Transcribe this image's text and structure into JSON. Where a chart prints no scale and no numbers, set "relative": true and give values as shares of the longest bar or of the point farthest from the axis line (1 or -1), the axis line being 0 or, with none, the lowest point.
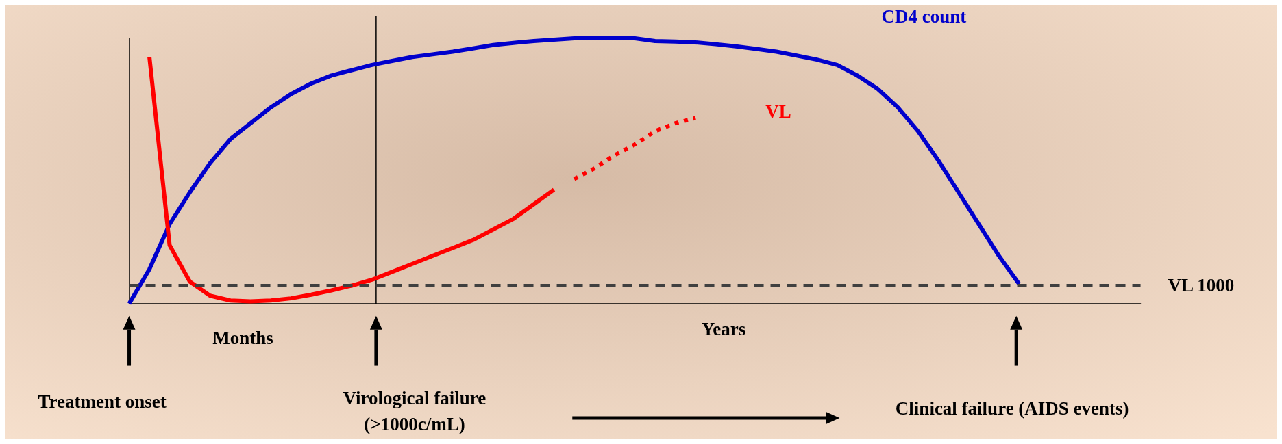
{
  "chart_data": {
    "type": "line",
    "relative": true,
    "categories": [
      null,
      null,
      null,
      null,
      null,
      null,
      null,
      null,
      null,
      null,
      null,
      null,
      null,
      null,
      null,
      null,
      null,
      null,
      null,
      null,
      null,
      null,
      null,
      null,
      null,
      null,
      null,
      null,
      null,
      null,
      null,
      null,
      null,
      null,
      null,
      null,
      null,
      null,
      null,
      null,
      null,
      null,
      null,
      null,
      null,
      null,
      null,
      null,
      null,
      null,
      null
    ],
    "series": [
      {
        "name": "CD4 count",
        "color": "#0000cc",
        "values": [
          0,
          0.13,
          0.3,
          0.42,
          0.53,
          0.62,
          0.68,
          0.74,
          0.79,
          0.83,
          0.86,
          0.88,
          0.9,
          0.915,
          0.93,
          0.94,
          0.95,
          0.962,
          0.975,
          0.983,
          0.99,
          0.995,
          1,
          1,
          1,
          1,
          0.99,
          0.988,
          0.985,
          0.978,
          0.97,
          0.96,
          0.95,
          0.935,
          0.92,
          0.9,
          0.86,
          0.81,
          0.74,
          0.65,
          0.54,
          0.42,
          0.3,
          0.18,
          0.074,
          null,
          null,
          null,
          null,
          null,
          null
        ]
      },
      {
        "name": "VL",
        "color": "#ff0000",
        "values": [
          null,
          0.93,
          0.22,
          0.083,
          0.03,
          0.012,
          0.009,
          0.012,
          0.02,
          0.034,
          0.05,
          0.068,
          0.09,
          0.12,
          0.15,
          0.18,
          0.21,
          0.24,
          0.28,
          0.32,
          0.375,
          0.43,
          null,
          null,
          null,
          null,
          null,
          null,
          null,
          null,
          null,
          null,
          null,
          null,
          null,
          null,
          null,
          null,
          null,
          null,
          null,
          null,
          null,
          null,
          null,
          null,
          null,
          null,
          null,
          null,
          null
        ]
      },
      {
        "color": "#ff0000",
        "line_style": "dotted",
        "values": [
          null,
          null,
          null,
          null,
          null,
          null,
          null,
          null,
          null,
          null,
          null,
          null,
          null,
          null,
          null,
          null,
          null,
          null,
          null,
          null,
          null,
          null,
          0.47,
          0.51,
          0.56,
          0.6,
          0.65,
          0.68,
          0.7,
          null,
          null,
          null,
          null,
          null,
          null,
          null,
          null,
          null,
          null,
          null,
          null,
          null,
          null,
          null,
          null,
          null,
          null,
          null,
          null,
          null,
          null
        ]
      }
    ],
    "ref_lines": [
      {
        "axis": "y",
        "value": 0.07,
        "label": "VL 1000",
        "color": "#404040",
        "line_style": "dashed"
      }
    ],
    "annotations": [
      "Months",
      "Years",
      "Treatment onset",
      "Virological failure\n(>1000c/mL)",
      "Clinical failure (AIDS events)"
    ],
    "grid": false,
    "legend": false,
    "marker": "none",
    "line_style": "solid"
  }
}
